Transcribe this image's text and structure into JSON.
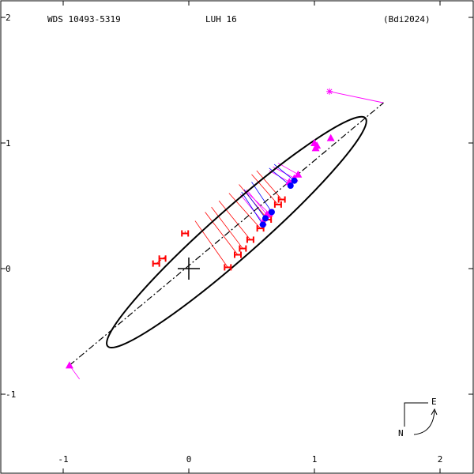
{
  "header": {
    "wds_id": "WDS 10493-5319",
    "discoverer": "LUH  16",
    "reference": "(Bdi2024)"
  },
  "compass": {
    "east_label": "E",
    "north_label": "N"
  },
  "colors": {
    "ellipse": "#000000",
    "nodes": "#000000",
    "micrometric": "#ff00ff",
    "speckle": "#0000ff",
    "visual": "#ff0000",
    "residual_visual": "#ff0000",
    "residual_micrometric": "#ff00ff",
    "residual_speckle": "#0000ff"
  },
  "chart_data": {
    "type": "scatter",
    "title": "",
    "xlabel": "",
    "ylabel": "",
    "xlim": [
      -1.0,
      2.0
    ],
    "ylim": [
      -1.0,
      2.0
    ],
    "x_ticks": [
      -1,
      0,
      1,
      2
    ],
    "y_ticks": [
      -1,
      0,
      1,
      2
    ],
    "x_ticklabels": [
      "-1",
      "0",
      "1",
      "2"
    ],
    "y_ticklabels": [
      "-1",
      "0",
      "1",
      "2"
    ],
    "orbit_ellipse": {
      "center": [
        0.38,
        0.29
      ],
      "semi_major": 1.37,
      "semi_minor": 0.19,
      "angle_deg": 41.5
    },
    "line_of_nodes": [
      [
        -0.95,
        -0.77
      ],
      [
        1.55,
        1.32
      ]
    ],
    "primary": [
      0.0,
      0.0
    ],
    "first_observation": {
      "point": [
        1.12,
        1.41
      ],
      "orbit_point": [
        1.55,
        1.32
      ]
    },
    "series": [
      {
        "name": "visual",
        "marker": "H-bar",
        "points": [
          [
            -0.26,
            0.04
          ],
          [
            -0.21,
            0.08
          ],
          [
            -0.03,
            0.28
          ],
          [
            0.31,
            0.01
          ],
          [
            0.39,
            0.11
          ],
          [
            0.43,
            0.16
          ],
          [
            0.49,
            0.23
          ],
          [
            0.57,
            0.32
          ],
          [
            0.63,
            0.39
          ],
          [
            0.71,
            0.51
          ],
          [
            0.74,
            0.55
          ]
        ],
        "orbit_points": [
          [
            -0.22,
            0.07
          ],
          [
            -0.18,
            0.1
          ],
          [
            -0.03,
            0.3
          ],
          [
            0.05,
            0.38
          ],
          [
            0.13,
            0.45
          ],
          [
            0.18,
            0.49
          ],
          [
            0.24,
            0.54
          ],
          [
            0.32,
            0.6
          ],
          [
            0.4,
            0.67
          ],
          [
            0.5,
            0.75
          ],
          [
            0.54,
            0.78
          ]
        ]
      },
      {
        "name": "micrometric",
        "marker": "triangle",
        "points": [
          [
            0.87,
            0.75
          ],
          [
            0.84,
            0.72
          ],
          [
            0.8,
            0.69
          ],
          [
            0.62,
            0.43
          ],
          [
            0.64,
            0.44
          ],
          [
            0.59,
            0.37
          ],
          [
            1.0,
            1.0
          ],
          [
            1.02,
            0.98
          ],
          [
            1.01,
            0.96
          ],
          [
            1.13,
            1.04
          ],
          [
            -0.95,
            -0.77
          ]
        ],
        "orbit_points": [
          [
            0.71,
            0.84
          ],
          [
            0.67,
            0.81
          ],
          [
            0.64,
            0.78
          ],
          [
            0.46,
            0.63
          ],
          [
            0.45,
            0.62
          ],
          [
            0.41,
            0.59
          ],
          [
            1.0,
            1.0
          ],
          [
            1.02,
            0.98
          ],
          [
            1.01,
            0.96
          ],
          [
            1.13,
            1.04
          ],
          [
            -0.87,
            -0.88
          ]
        ]
      },
      {
        "name": "speckle",
        "marker": "circle",
        "points": [
          [
            0.81,
            0.66
          ],
          [
            0.84,
            0.7
          ],
          [
            0.66,
            0.45
          ],
          [
            0.59,
            0.35
          ],
          [
            0.61,
            0.4
          ]
        ],
        "orbit_points": [
          [
            0.64,
            0.8
          ],
          [
            0.68,
            0.83
          ],
          [
            0.5,
            0.69
          ],
          [
            0.42,
            0.61
          ],
          [
            0.44,
            0.63
          ]
        ]
      }
    ]
  }
}
